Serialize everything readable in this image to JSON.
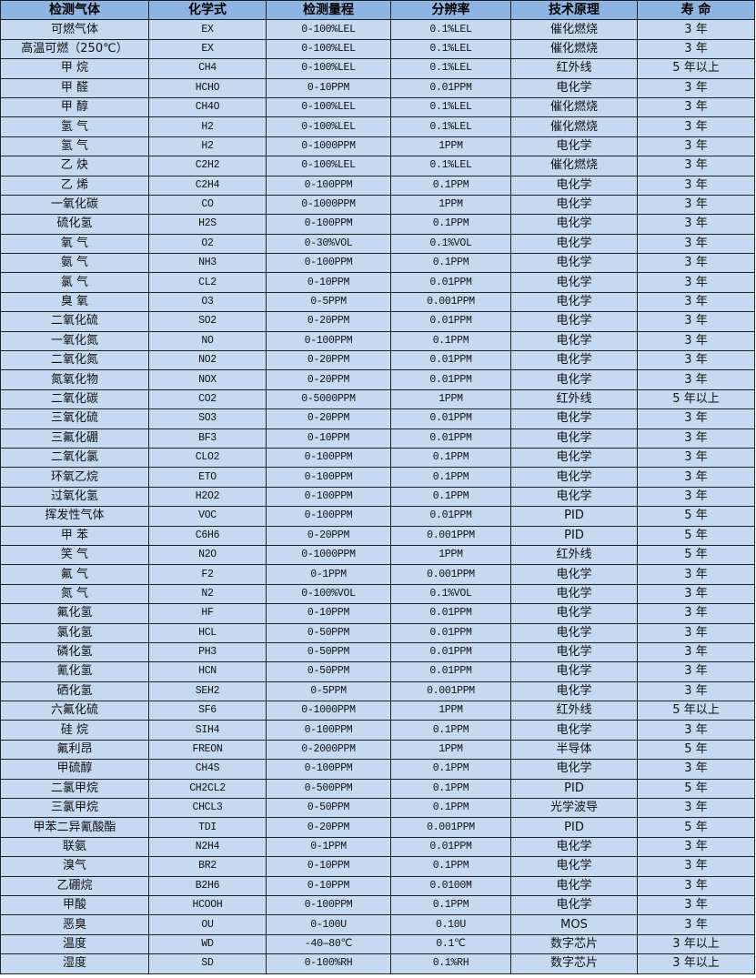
{
  "colors": {
    "header_bg": "#8DB4E2",
    "row_bg": "#C5D9F1",
    "border": "#222222"
  },
  "table": {
    "headers": [
      "检测气体",
      "化学式",
      "检测量程",
      "分辨率",
      "技术原理",
      "寿 命"
    ],
    "rows": [
      [
        "可燃气体",
        "EX",
        "0-100%LEL",
        "0.1%LEL",
        "催化燃烧",
        "3 年"
      ],
      [
        "高温可燃（250℃）",
        "EX",
        "0-100%LEL",
        "0.1%LEL",
        "催化燃烧",
        "3 年"
      ],
      [
        "甲 烷",
        "CH4",
        "0-100%LEL",
        "0.1%LEL",
        "红外线",
        "5 年以上"
      ],
      [
        "甲 醛",
        "HCHO",
        "0-10PPM",
        "0.01PPM",
        "电化学",
        "3 年"
      ],
      [
        "甲 醇",
        "CH4O",
        "0-100%LEL",
        "0.1%LEL",
        "催化燃烧",
        "3 年"
      ],
      [
        "氢 气",
        "H2",
        "0-100%LEL",
        "0.1%LEL",
        "催化燃烧",
        "3 年"
      ],
      [
        "氢 气",
        "H2",
        "0-1000PPM",
        "1PPM",
        "电化学",
        "3 年"
      ],
      [
        "乙 炔",
        "C2H2",
        "0-100%LEL",
        "0.1%LEL",
        "催化燃烧",
        "3 年"
      ],
      [
        "乙 烯",
        "C2H4",
        "0-100PPM",
        "0.1PPM",
        "电化学",
        "3 年"
      ],
      [
        "一氧化碳",
        "CO",
        "0-1000PPM",
        "1PPM",
        "电化学",
        "3 年"
      ],
      [
        "硫化氢",
        "H2S",
        "0-100PPM",
        "0.1PPM",
        "电化学",
        "3 年"
      ],
      [
        "氧 气",
        "O2",
        "0-30%VOL",
        "0.1%VOL",
        "电化学",
        "3 年"
      ],
      [
        "氨 气",
        "NH3",
        "0-100PPM",
        "0.1PPM",
        "电化学",
        "3 年"
      ],
      [
        "氯 气",
        "CL2",
        "0-10PPM",
        "0.01PPM",
        "电化学",
        "3 年"
      ],
      [
        "臭 氧",
        "O3",
        "0-5PPM",
        "0.001PPM",
        "电化学",
        "3 年"
      ],
      [
        "二氧化硫",
        "SO2",
        "0-20PPM",
        "0.01PPM",
        "电化学",
        "3 年"
      ],
      [
        "一氧化氮",
        "NO",
        "0-100PPM",
        "0.1PPM",
        "电化学",
        "3 年"
      ],
      [
        "二氧化氮",
        "NO2",
        "0-20PPM",
        "0.01PPM",
        "电化学",
        "3 年"
      ],
      [
        "氮氧化物",
        "NOX",
        "0-20PPM",
        "0.01PPM",
        "电化学",
        "3 年"
      ],
      [
        "二氧化碳",
        "CO2",
        "0-5000PPM",
        "1PPM",
        "红外线",
        "5 年以上"
      ],
      [
        "三氧化硫",
        "SO3",
        "0-20PPM",
        "0.01PPM",
        "电化学",
        "3 年"
      ],
      [
        "三氟化硼",
        "BF3",
        "0-10PPM",
        "0.01PPM",
        "电化学",
        "3 年"
      ],
      [
        "二氧化氯",
        "CLO2",
        "0-100PPM",
        "0.1PPM",
        "电化学",
        "3 年"
      ],
      [
        "环氧乙烷",
        "ETO",
        "0-100PPM",
        "0.1PPM",
        "电化学",
        "3 年"
      ],
      [
        "过氧化氢",
        "H2O2",
        "0-100PPM",
        "0.1PPM",
        "电化学",
        "3 年"
      ],
      [
        "挥发性气体",
        "VOC",
        "0-100PPM",
        "0.01PPM",
        "PID",
        "5 年"
      ],
      [
        "甲 苯",
        "C6H6",
        "0-20PPM",
        "0.001PPM",
        "PID",
        "5 年"
      ],
      [
        "笑 气",
        "N2O",
        "0-1000PPM",
        "1PPM",
        "红外线",
        "5 年"
      ],
      [
        "氟 气",
        "F2",
        "0-1PPM",
        "0.001PPM",
        "电化学",
        "3 年"
      ],
      [
        "氮 气",
        "N2",
        "0-100%VOL",
        "0.1%VOL",
        "电化学",
        "3 年"
      ],
      [
        "氟化氢",
        "HF",
        "0-10PPM",
        "0.01PPM",
        "电化学",
        "3 年"
      ],
      [
        "氯化氢",
        "HCL",
        "0-50PPM",
        "0.01PPM",
        "电化学",
        "3 年"
      ],
      [
        "磷化氢",
        "PH3",
        "0-50PPM",
        "0.01PPM",
        "电化学",
        "3 年"
      ],
      [
        "氰化氢",
        "HCN",
        "0-50PPM",
        "0.01PPM",
        "电化学",
        "3 年"
      ],
      [
        "硒化氢",
        "SEH2",
        "0-5PPM",
        "0.001PPM",
        "电化学",
        "3 年"
      ],
      [
        "六氟化硫",
        "SF6",
        "0-1000PPM",
        "1PPM",
        "红外线",
        "5 年以上"
      ],
      [
        "硅 烷",
        "SIH4",
        "0-100PPM",
        "0.1PPM",
        "电化学",
        "3 年"
      ],
      [
        "氟利昂",
        "FREON",
        "0-2000PPM",
        "1PPM",
        "半导体",
        "5 年"
      ],
      [
        "甲硫醇",
        "CH4S",
        "0-100PPM",
        "0.1PPM",
        "电化学",
        "3 年"
      ],
      [
        "二氯甲烷",
        "CH2CL2",
        "0-500PPM",
        "0.1PPM",
        "PID",
        "5 年"
      ],
      [
        "三氯甲烷",
        "CHCL3",
        "0-50PPM",
        "0.1PPM",
        "光学波导",
        "3 年"
      ],
      [
        "甲苯二异氰酸酯",
        "TDI",
        "0-20PPM",
        "0.001PPM",
        "PID",
        "5 年"
      ],
      [
        "联氨",
        "N2H4",
        "0-1PPM",
        "0.01PPM",
        "电化学",
        "3 年"
      ],
      [
        "溴气",
        "BR2",
        "0-10PPM",
        "0.1PPM",
        "电化学",
        "3 年"
      ],
      [
        "乙硼烷",
        "B2H6",
        "0-10PPM",
        "0.0100M",
        "电化学",
        "3 年"
      ],
      [
        "甲酸",
        "HCOOH",
        "0-100PPM",
        "0.1PPM",
        "电化学",
        "3 年"
      ],
      [
        "恶臭",
        "OU",
        "0-100U",
        "0.10U",
        "MOS",
        "3 年"
      ],
      [
        "温度",
        "WD",
        "-40—80℃",
        "0.1℃",
        "数字芯片",
        "3 年以上"
      ],
      [
        "湿度",
        "SD",
        "0-100%RH",
        "0.1%RH",
        "数字芯片",
        "3 年以上"
      ]
    ]
  }
}
